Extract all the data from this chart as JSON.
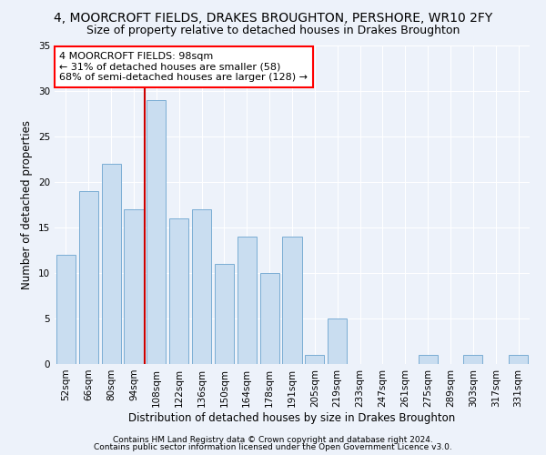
{
  "title": "4, MOORCROFT FIELDS, DRAKES BROUGHTON, PERSHORE, WR10 2FY",
  "subtitle": "Size of property relative to detached houses in Drakes Broughton",
  "xlabel": "Distribution of detached houses by size in Drakes Broughton",
  "ylabel": "Number of detached properties",
  "footnote1": "Contains HM Land Registry data © Crown copyright and database right 2024.",
  "footnote2": "Contains public sector information licensed under the Open Government Licence v3.0.",
  "categories": [
    "52sqm",
    "66sqm",
    "80sqm",
    "94sqm",
    "108sqm",
    "122sqm",
    "136sqm",
    "150sqm",
    "164sqm",
    "178sqm",
    "191sqm",
    "205sqm",
    "219sqm",
    "233sqm",
    "247sqm",
    "261sqm",
    "275sqm",
    "289sqm",
    "303sqm",
    "317sqm",
    "331sqm"
  ],
  "values": [
    12,
    19,
    22,
    17,
    29,
    16,
    17,
    11,
    14,
    10,
    14,
    1,
    5,
    0,
    0,
    0,
    1,
    0,
    1,
    0,
    1
  ],
  "bar_color": "#c9ddf0",
  "bar_edge_color": "#7aadd4",
  "bar_width": 0.85,
  "ylim": [
    0,
    35
  ],
  "yticks": [
    0,
    5,
    10,
    15,
    20,
    25,
    30,
    35
  ],
  "red_line_x": 3.5,
  "red_line_color": "#cc0000",
  "annotation_text": "4 MOORCROFT FIELDS: 98sqm\n← 31% of detached houses are smaller (58)\n68% of semi-detached houses are larger (128) →",
  "bg_color": "#edf2fa",
  "grid_color": "#ffffff",
  "title_fontsize": 10,
  "subtitle_fontsize": 9,
  "axis_label_fontsize": 8.5,
  "tick_fontsize": 7.5,
  "annotation_fontsize": 8,
  "footnote_fontsize": 6.5
}
